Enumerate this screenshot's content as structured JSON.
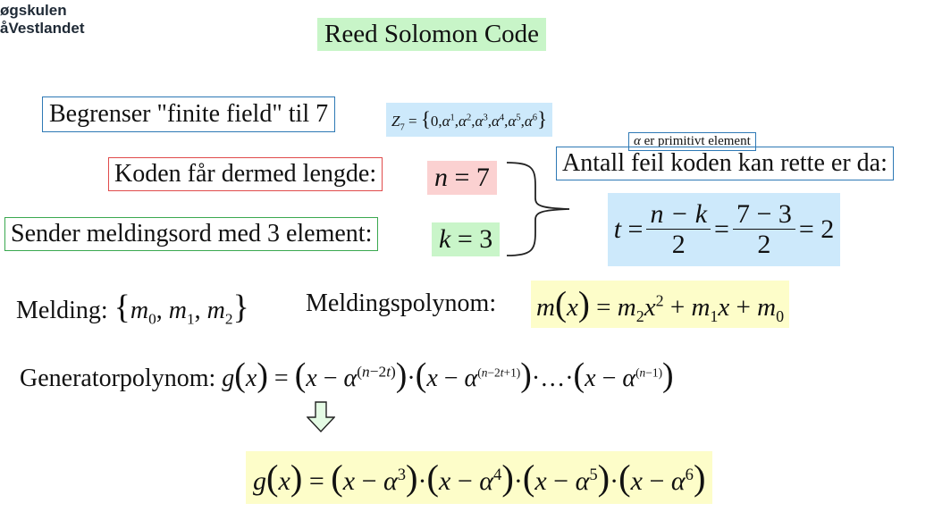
{
  "logo": {
    "line1": "øgskulen",
    "line2": "åVestlandet"
  },
  "title": "Reed Solomon Code",
  "field_box": "Begrenser \"finite field\" til 7",
  "field_set": {
    "name": "Z",
    "sub": "7",
    "eq": " = "
  },
  "primitive": "er primitivt element",
  "length_box": "Koden får dermed lengde:",
  "length_eq": {
    "var": "n",
    "op": " = ",
    "val": "7"
  },
  "msg_box": "Sender meldingsord med 3 element:",
  "msg_eq": {
    "var": "k",
    "op": " = ",
    "val": "3"
  },
  "errors_box": "Antall feil koden kan rette er da:",
  "errors_formula": {
    "lhs": "t",
    "num1": "n − k",
    "den1": "2",
    "num2": "7 − 3",
    "den2": "2",
    "result": "2"
  },
  "message_label": "Melding:",
  "polynomial_label": "Meldingspolynom:",
  "generator_label": "Generatorpolynom:",
  "icons": {
    "arrow": "down-arrow-icon",
    "brace": "right-brace-icon"
  },
  "colors": {
    "green": "#c9f5c9",
    "blue": "#cde9fb",
    "red": "#fbd1d1",
    "yellow": "#fdfdc9"
  }
}
